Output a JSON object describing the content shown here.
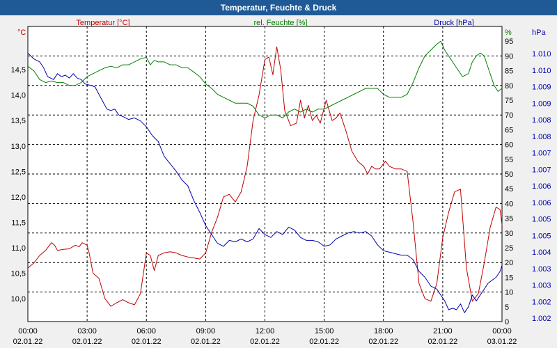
{
  "chart_data": {
    "type": "line",
    "title": "Temperatur, Feuchte & Druck",
    "x_ticks": [
      {
        "time": "00:00",
        "date": "02.01.22"
      },
      {
        "time": "03:00",
        "date": "02.01.22"
      },
      {
        "time": "06:00",
        "date": "02.01.22"
      },
      {
        "time": "09:00",
        "date": "02.01.22"
      },
      {
        "time": "12:00",
        "date": "02.01.22"
      },
      {
        "time": "15:00",
        "date": "02.01.22"
      },
      {
        "time": "18:00",
        "date": "02.01.22"
      },
      {
        "time": "21:00",
        "date": "02.01.22"
      },
      {
        "time": "00:00",
        "date": "03.01.22"
      }
    ],
    "xlim": [
      0,
      24
    ],
    "axes": {
      "temperature": {
        "label": "Temperatur [°C]",
        "unit": "°C",
        "color": "#c00000",
        "ylim": [
          9.55,
          15.35
        ],
        "ticks": [
          "10,0",
          "10,5",
          "11,0",
          "11,5",
          "12,0",
          "12,5",
          "13,0",
          "13,5",
          "14,0",
          "14,5"
        ]
      },
      "humidity": {
        "label": "rel. Feuchte [%]",
        "unit": "%",
        "color": "#008000",
        "ylim": [
          0,
          100
        ],
        "ticks": [
          "0",
          "5",
          "10",
          "15",
          "20",
          "25",
          "30",
          "35",
          "40",
          "45",
          "50",
          "55",
          "60",
          "65",
          "70",
          "75",
          "80",
          "85",
          "90",
          "95"
        ]
      },
      "pressure": {
        "label": "Druck [hPa]",
        "unit": "hPa",
        "color": "#0000b0",
        "ticks": [
          "1.002",
          "1.002",
          "1.003",
          "1.003",
          "1.004",
          "1.005",
          "1.005",
          "1.006",
          "1.006",
          "1.007",
          "1.007",
          "1.008",
          "1.008",
          "1.009",
          "1.009",
          "1.010",
          "1.010"
        ]
      }
    },
    "series": [
      {
        "name": "Temperatur",
        "axis": "temperature",
        "color": "#c00000",
        "points": [
          [
            0,
            10.6
          ],
          [
            0.3,
            10.7
          ],
          [
            0.6,
            10.85
          ],
          [
            0.9,
            10.95
          ],
          [
            1.2,
            11.1
          ],
          [
            1.35,
            11.05
          ],
          [
            1.5,
            10.95
          ],
          [
            1.8,
            10.97
          ],
          [
            2.1,
            10.98
          ],
          [
            2.4,
            11.05
          ],
          [
            2.6,
            11.02
          ],
          [
            2.75,
            11.1
          ],
          [
            3.0,
            11.05
          ],
          [
            3.1,
            10.9
          ],
          [
            3.3,
            10.5
          ],
          [
            3.6,
            10.4
          ],
          [
            3.9,
            10.0
          ],
          [
            4.2,
            9.85
          ],
          [
            4.5,
            9.92
          ],
          [
            4.8,
            9.98
          ],
          [
            5.1,
            9.92
          ],
          [
            5.4,
            9.88
          ],
          [
            5.7,
            10.1
          ],
          [
            5.85,
            10.5
          ],
          [
            6.0,
            10.9
          ],
          [
            6.2,
            10.85
          ],
          [
            6.4,
            10.55
          ],
          [
            6.6,
            10.85
          ],
          [
            6.9,
            10.9
          ],
          [
            7.2,
            10.92
          ],
          [
            7.5,
            10.9
          ],
          [
            7.8,
            10.85
          ],
          [
            8.1,
            10.82
          ],
          [
            8.4,
            10.8
          ],
          [
            8.7,
            10.78
          ],
          [
            9.0,
            10.9
          ],
          [
            9.3,
            11.3
          ],
          [
            9.6,
            11.6
          ],
          [
            9.9,
            12.0
          ],
          [
            10.2,
            12.05
          ],
          [
            10.5,
            11.9
          ],
          [
            10.8,
            12.1
          ],
          [
            11.1,
            12.6
          ],
          [
            11.4,
            13.5
          ],
          [
            11.7,
            14.0
          ],
          [
            12.0,
            14.7
          ],
          [
            12.2,
            14.75
          ],
          [
            12.4,
            14.4
          ],
          [
            12.6,
            14.95
          ],
          [
            12.8,
            14.5
          ],
          [
            13.0,
            13.7
          ],
          [
            13.3,
            13.4
          ],
          [
            13.6,
            13.45
          ],
          [
            13.8,
            13.9
          ],
          [
            14.0,
            13.55
          ],
          [
            14.2,
            13.8
          ],
          [
            14.4,
            13.5
          ],
          [
            14.6,
            13.6
          ],
          [
            14.8,
            13.45
          ],
          [
            15.1,
            13.9
          ],
          [
            15.4,
            13.5
          ],
          [
            15.6,
            13.55
          ],
          [
            15.8,
            13.65
          ],
          [
            16.1,
            13.3
          ],
          [
            16.4,
            12.9
          ],
          [
            16.7,
            12.7
          ],
          [
            17.0,
            12.6
          ],
          [
            17.2,
            12.45
          ],
          [
            17.4,
            12.6
          ],
          [
            17.6,
            12.55
          ],
          [
            17.8,
            12.55
          ],
          [
            18.1,
            12.7
          ],
          [
            18.3,
            12.6
          ],
          [
            18.6,
            12.55
          ],
          [
            18.9,
            12.55
          ],
          [
            19.2,
            12.5
          ],
          [
            19.5,
            11.5
          ],
          [
            19.8,
            10.3
          ],
          [
            20.1,
            10.0
          ],
          [
            20.4,
            9.95
          ],
          [
            20.7,
            10.3
          ],
          [
            21.0,
            11.2
          ],
          [
            21.3,
            11.7
          ],
          [
            21.6,
            12.1
          ],
          [
            21.9,
            12.15
          ],
          [
            22.2,
            10.6
          ],
          [
            22.5,
            9.95
          ],
          [
            22.8,
            10.1
          ],
          [
            23.1,
            10.7
          ],
          [
            23.4,
            11.4
          ],
          [
            23.7,
            11.8
          ],
          [
            23.9,
            11.75
          ],
          [
            24.0,
            11.45
          ]
        ]
      },
      {
        "name": "rel. Feuchte",
        "axis": "humidity",
        "color": "#008000",
        "points": [
          [
            0,
            86.5
          ],
          [
            0.3,
            85
          ],
          [
            0.6,
            82
          ],
          [
            0.9,
            81
          ],
          [
            1.2,
            81.5
          ],
          [
            1.5,
            81
          ],
          [
            1.8,
            81
          ],
          [
            2.1,
            80
          ],
          [
            2.4,
            80
          ],
          [
            2.7,
            81
          ],
          [
            3.0,
            83
          ],
          [
            3.3,
            84
          ],
          [
            3.6,
            85
          ],
          [
            3.9,
            86
          ],
          [
            4.2,
            86.5
          ],
          [
            4.5,
            86
          ],
          [
            4.8,
            87
          ],
          [
            5.1,
            87
          ],
          [
            5.4,
            88
          ],
          [
            5.7,
            89
          ],
          [
            6.0,
            89.5
          ],
          [
            6.2,
            87
          ],
          [
            6.4,
            88.5
          ],
          [
            6.6,
            88
          ],
          [
            6.9,
            88
          ],
          [
            7.2,
            87
          ],
          [
            7.5,
            87
          ],
          [
            7.8,
            86
          ],
          [
            8.1,
            86
          ],
          [
            8.4,
            84.5
          ],
          [
            8.7,
            83
          ],
          [
            9.0,
            80.5
          ],
          [
            9.3,
            79
          ],
          [
            9.6,
            77
          ],
          [
            9.9,
            76
          ],
          [
            10.2,
            75
          ],
          [
            10.5,
            74
          ],
          [
            10.8,
            74
          ],
          [
            11.1,
            74
          ],
          [
            11.4,
            73
          ],
          [
            11.7,
            70
          ],
          [
            12.0,
            69
          ],
          [
            12.3,
            70
          ],
          [
            12.6,
            70
          ],
          [
            12.9,
            69
          ],
          [
            13.2,
            71
          ],
          [
            13.5,
            72
          ],
          [
            13.8,
            71
          ],
          [
            14.1,
            72
          ],
          [
            14.4,
            71
          ],
          [
            14.7,
            72
          ],
          [
            15.0,
            72
          ],
          [
            15.3,
            73
          ],
          [
            15.6,
            74
          ],
          [
            15.9,
            75
          ],
          [
            16.2,
            76
          ],
          [
            16.5,
            77
          ],
          [
            16.8,
            78
          ],
          [
            17.1,
            79
          ],
          [
            17.4,
            79
          ],
          [
            17.7,
            79
          ],
          [
            18.0,
            77
          ],
          [
            18.3,
            76
          ],
          [
            18.6,
            76
          ],
          [
            18.9,
            76
          ],
          [
            19.2,
            77
          ],
          [
            19.5,
            81
          ],
          [
            19.8,
            86
          ],
          [
            20.1,
            90
          ],
          [
            20.4,
            92
          ],
          [
            20.7,
            94
          ],
          [
            20.9,
            95
          ],
          [
            21.1,
            92
          ],
          [
            21.4,
            89
          ],
          [
            21.7,
            86
          ],
          [
            22.0,
            83
          ],
          [
            22.3,
            84
          ],
          [
            22.5,
            88
          ],
          [
            22.7,
            90
          ],
          [
            22.9,
            91
          ],
          [
            23.1,
            90
          ],
          [
            23.3,
            86
          ],
          [
            23.6,
            80
          ],
          [
            23.8,
            78
          ],
          [
            24.0,
            79
          ]
        ]
      },
      {
        "name": "Druck",
        "axis": "pressure",
        "color": "#0000b0",
        "points": [
          [
            0,
            91
          ],
          [
            0.3,
            89
          ],
          [
            0.6,
            88
          ],
          [
            0.8,
            86
          ],
          [
            1.0,
            83
          ],
          [
            1.3,
            82
          ],
          [
            1.5,
            84
          ],
          [
            1.7,
            83
          ],
          [
            1.9,
            83.5
          ],
          [
            2.1,
            82.5
          ],
          [
            2.3,
            84
          ],
          [
            2.5,
            82.5
          ],
          [
            2.7,
            82
          ],
          [
            2.9,
            80.5
          ],
          [
            3.2,
            80
          ],
          [
            3.4,
            79.5
          ],
          [
            3.6,
            77
          ],
          [
            3.8,
            74.5
          ],
          [
            4.0,
            72
          ],
          [
            4.2,
            71.5
          ],
          [
            4.4,
            72
          ],
          [
            4.6,
            70
          ],
          [
            4.8,
            69.5
          ],
          [
            5.1,
            68.5
          ],
          [
            5.4,
            69
          ],
          [
            5.7,
            68
          ],
          [
            6.0,
            66
          ],
          [
            6.3,
            63
          ],
          [
            6.6,
            61
          ],
          [
            6.9,
            56
          ],
          [
            7.2,
            53.5
          ],
          [
            7.5,
            51
          ],
          [
            7.8,
            48
          ],
          [
            8.1,
            46
          ],
          [
            8.4,
            41
          ],
          [
            8.7,
            37
          ],
          [
            9.0,
            32.5
          ],
          [
            9.3,
            29.5
          ],
          [
            9.6,
            26.5
          ],
          [
            9.9,
            25.5
          ],
          [
            10.2,
            27.5
          ],
          [
            10.5,
            27
          ],
          [
            10.8,
            28
          ],
          [
            11.1,
            27
          ],
          [
            11.4,
            28
          ],
          [
            11.7,
            31.5
          ],
          [
            12.0,
            29.5
          ],
          [
            12.3,
            28.5
          ],
          [
            12.6,
            30.5
          ],
          [
            12.9,
            29.5
          ],
          [
            13.2,
            32
          ],
          [
            13.5,
            31
          ],
          [
            13.8,
            28.5
          ],
          [
            14.1,
            27.5
          ],
          [
            14.4,
            27.5
          ],
          [
            14.7,
            27
          ],
          [
            15.0,
            25.5
          ],
          [
            15.3,
            26
          ],
          [
            15.6,
            28
          ],
          [
            15.9,
            29
          ],
          [
            16.2,
            30
          ],
          [
            16.5,
            30.5
          ],
          [
            16.8,
            30
          ],
          [
            17.1,
            30.5
          ],
          [
            17.4,
            29
          ],
          [
            17.7,
            26
          ],
          [
            18.0,
            24
          ],
          [
            18.3,
            23.5
          ],
          [
            18.6,
            23
          ],
          [
            18.9,
            22.5
          ],
          [
            19.2,
            22.5
          ],
          [
            19.5,
            21
          ],
          [
            19.8,
            17
          ],
          [
            20.1,
            15
          ],
          [
            20.4,
            12
          ],
          [
            20.7,
            11
          ],
          [
            20.9,
            9
          ],
          [
            21.1,
            7
          ],
          [
            21.3,
            4
          ],
          [
            21.5,
            4.5
          ],
          [
            21.7,
            4
          ],
          [
            21.9,
            6
          ],
          [
            22.1,
            3
          ],
          [
            22.3,
            5
          ],
          [
            22.5,
            9
          ],
          [
            22.7,
            7
          ],
          [
            22.9,
            9
          ],
          [
            23.1,
            11
          ],
          [
            23.3,
            13
          ],
          [
            23.5,
            14
          ],
          [
            23.7,
            15
          ],
          [
            23.9,
            17
          ],
          [
            24.0,
            19
          ]
        ]
      }
    ],
    "pressure_scale_note": "pressure drawn against the humidity percentage grid (0-100)"
  }
}
